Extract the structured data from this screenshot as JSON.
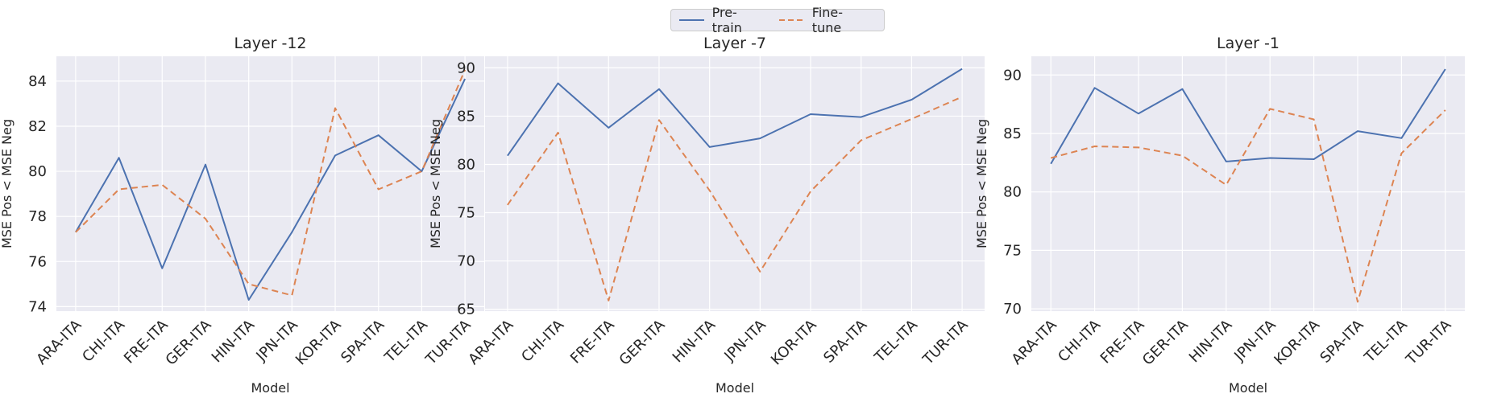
{
  "legend": {
    "placement": "top-center",
    "items": [
      {
        "label": "Pre-train",
        "color": "#4c72b0",
        "dash": "solid"
      },
      {
        "label": "Fine-tune",
        "color": "#dd8452",
        "dash": "dashed"
      }
    ]
  },
  "chart_data": [
    {
      "type": "line",
      "title": "Layer -12",
      "xlabel": "Model",
      "ylabel": "MSE Pos < MSE Neg",
      "categories": [
        "ARA-ITA",
        "CHI-ITA",
        "FRE-ITA",
        "GER-ITA",
        "HIN-ITA",
        "JPN-ITA",
        "KOR-ITA",
        "SPA-ITA",
        "TEL-ITA",
        "TUR-ITA"
      ],
      "ylim": [
        73.8,
        85.1
      ],
      "yticks": [
        74,
        76,
        78,
        80,
        82,
        84
      ],
      "grid": true,
      "series": [
        {
          "name": "Pre-train",
          "color": "#4c72b0",
          "values": [
            77.3,
            80.6,
            75.7,
            80.3,
            74.3,
            77.3,
            80.7,
            81.6,
            80.0,
            84.1
          ]
        },
        {
          "name": "Fine-tune",
          "color": "#dd8452",
          "values": [
            77.3,
            79.2,
            79.4,
            77.9,
            75.0,
            74.5,
            82.8,
            79.2,
            80.0,
            84.5
          ]
        }
      ]
    },
    {
      "type": "line",
      "title": "Layer -7",
      "xlabel": "Model",
      "ylabel": "MSE Pos < MSE Neg",
      "categories": [
        "ARA-ITA",
        "CHI-ITA",
        "FRE-ITA",
        "GER-ITA",
        "HIN-ITA",
        "JPN-ITA",
        "KOR-ITA",
        "SPA-ITA",
        "TEL-ITA",
        "TUR-ITA"
      ],
      "ylim": [
        64.8,
        91.2
      ],
      "yticks": [
        65,
        70,
        75,
        80,
        85,
        90
      ],
      "grid": true,
      "series": [
        {
          "name": "Pre-train",
          "color": "#4c72b0",
          "values": [
            80.9,
            88.4,
            83.8,
            87.8,
            81.8,
            82.7,
            85.2,
            84.9,
            86.7,
            89.9
          ]
        },
        {
          "name": "Fine-tune",
          "color": "#dd8452",
          "values": [
            75.8,
            83.3,
            65.9,
            84.6,
            77.3,
            68.9,
            77.2,
            82.5,
            84.7,
            87.0
          ]
        }
      ]
    },
    {
      "type": "line",
      "title": "Layer -1",
      "xlabel": "Model",
      "ylabel": "MSE Pos < MSE Neg",
      "categories": [
        "ARA-ITA",
        "CHI-ITA",
        "FRE-ITA",
        "GER-ITA",
        "HIN-ITA",
        "JPN-ITA",
        "KOR-ITA",
        "SPA-ITA",
        "TEL-ITA",
        "TUR-ITA"
      ],
      "ylim": [
        69.8,
        91.6
      ],
      "yticks": [
        70,
        75,
        80,
        85,
        90
      ],
      "grid": true,
      "series": [
        {
          "name": "Pre-train",
          "color": "#4c72b0",
          "values": [
            82.4,
            88.9,
            86.7,
            88.8,
            82.6,
            82.9,
            82.8,
            85.2,
            84.6,
            90.5
          ]
        },
        {
          "name": "Fine-tune",
          "color": "#dd8452",
          "values": [
            82.9,
            83.9,
            83.8,
            83.1,
            80.6,
            87.1,
            86.2,
            70.6,
            83.3,
            87.0
          ]
        }
      ]
    }
  ]
}
